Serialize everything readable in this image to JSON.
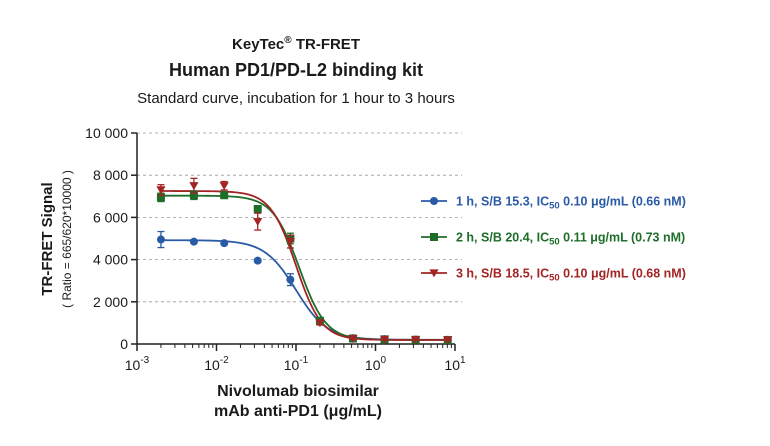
{
  "chart_data": {
    "type": "scatter",
    "title_line1": "KeyTec",
    "title_reg": "®",
    "title_line1_suffix": " TR-FRET",
    "title_line2": "Human PD1/PD-L2 binding kit",
    "subtitle": "Standard curve,  incubation for 1 hour to 3 hours",
    "xlabel_line1": "Nivolumab biosimilar",
    "xlabel_line2": "mAb anti-PD1  (μg/mL)",
    "ylabel": "TR-FRET Signal",
    "ylabel2": "( Ratio = 665/620*10000 )",
    "x_scale": "log",
    "xlim": [
      0.001,
      10
    ],
    "ylim": [
      0,
      10000
    ],
    "y_ticks": [
      0,
      2000,
      4000,
      6000,
      8000,
      10000
    ],
    "y_tick_labels": [
      "0",
      "2 000",
      "4 000",
      "6 000",
      "8 000",
      "10 000"
    ],
    "x_ticks": [
      0.001,
      0.01,
      0.1,
      1,
      10
    ],
    "x_tick_labels": [
      {
        "base": "10",
        "exp": "-3"
      },
      {
        "base": "10",
        "exp": "-2"
      },
      {
        "base": "10",
        "exp": "-1"
      },
      {
        "base": "10",
        "exp": "0"
      },
      {
        "base": "10",
        "exp": "1"
      }
    ],
    "grid": "horizontal dashed",
    "legend_position": "right",
    "series": [
      {
        "name_prefix": "1 h, S/B 15.3, IC",
        "name_sub": "50",
        "name_suffix": " 0.10 μg/mL (0.66 nM)",
        "color": "#2a5aa6",
        "marker": "circle",
        "x": [
          0.002,
          0.0052,
          0.0125,
          0.033,
          0.085,
          0.2,
          0.52,
          1.3,
          3.2,
          8.1
        ],
        "y": [
          4950,
          4850,
          4780,
          3950,
          3050,
          1080,
          280,
          230,
          210,
          200
        ],
        "err": [
          380,
          80,
          80,
          80,
          280,
          120,
          40,
          40,
          30,
          30
        ],
        "fit": {
          "bottom": 200,
          "top": 4920,
          "ic50": 0.1,
          "hill": 2.2
        }
      },
      {
        "name_prefix": "2 h, S/B 20.4, IC",
        "name_sub": "50",
        "name_suffix": " 0.11 μg/mL (0.73 nM)",
        "color": "#1e6e2a",
        "marker": "square",
        "x": [
          0.002,
          0.0052,
          0.0125,
          0.033,
          0.085,
          0.2,
          0.52,
          1.3,
          3.2,
          8.1
        ],
        "y": [
          6950,
          7050,
          7050,
          6400,
          5000,
          1100,
          260,
          220,
          200,
          190
        ],
        "err": [
          200,
          200,
          120,
          150,
          250,
          100,
          40,
          30,
          30,
          30
        ],
        "fit": {
          "bottom": 190,
          "top": 7030,
          "ic50": 0.11,
          "hill": 2.6
        }
      },
      {
        "name_prefix": "3 h, S/B 18.5, IC",
        "name_sub": "50",
        "name_suffix": " 0.10 μg/mL (0.68 nM)",
        "color": "#a32424",
        "marker": "triangle-down",
        "x": [
          0.002,
          0.0052,
          0.0125,
          0.033,
          0.085,
          0.2,
          0.52,
          1.3,
          3.2,
          8.1
        ],
        "y": [
          7300,
          7500,
          7500,
          5800,
          4850,
          1000,
          250,
          220,
          200,
          190
        ],
        "err": [
          250,
          350,
          200,
          400,
          300,
          100,
          40,
          30,
          30,
          30
        ],
        "fit": {
          "bottom": 190,
          "top": 7250,
          "ic50": 0.1,
          "hill": 2.7
        }
      }
    ]
  }
}
